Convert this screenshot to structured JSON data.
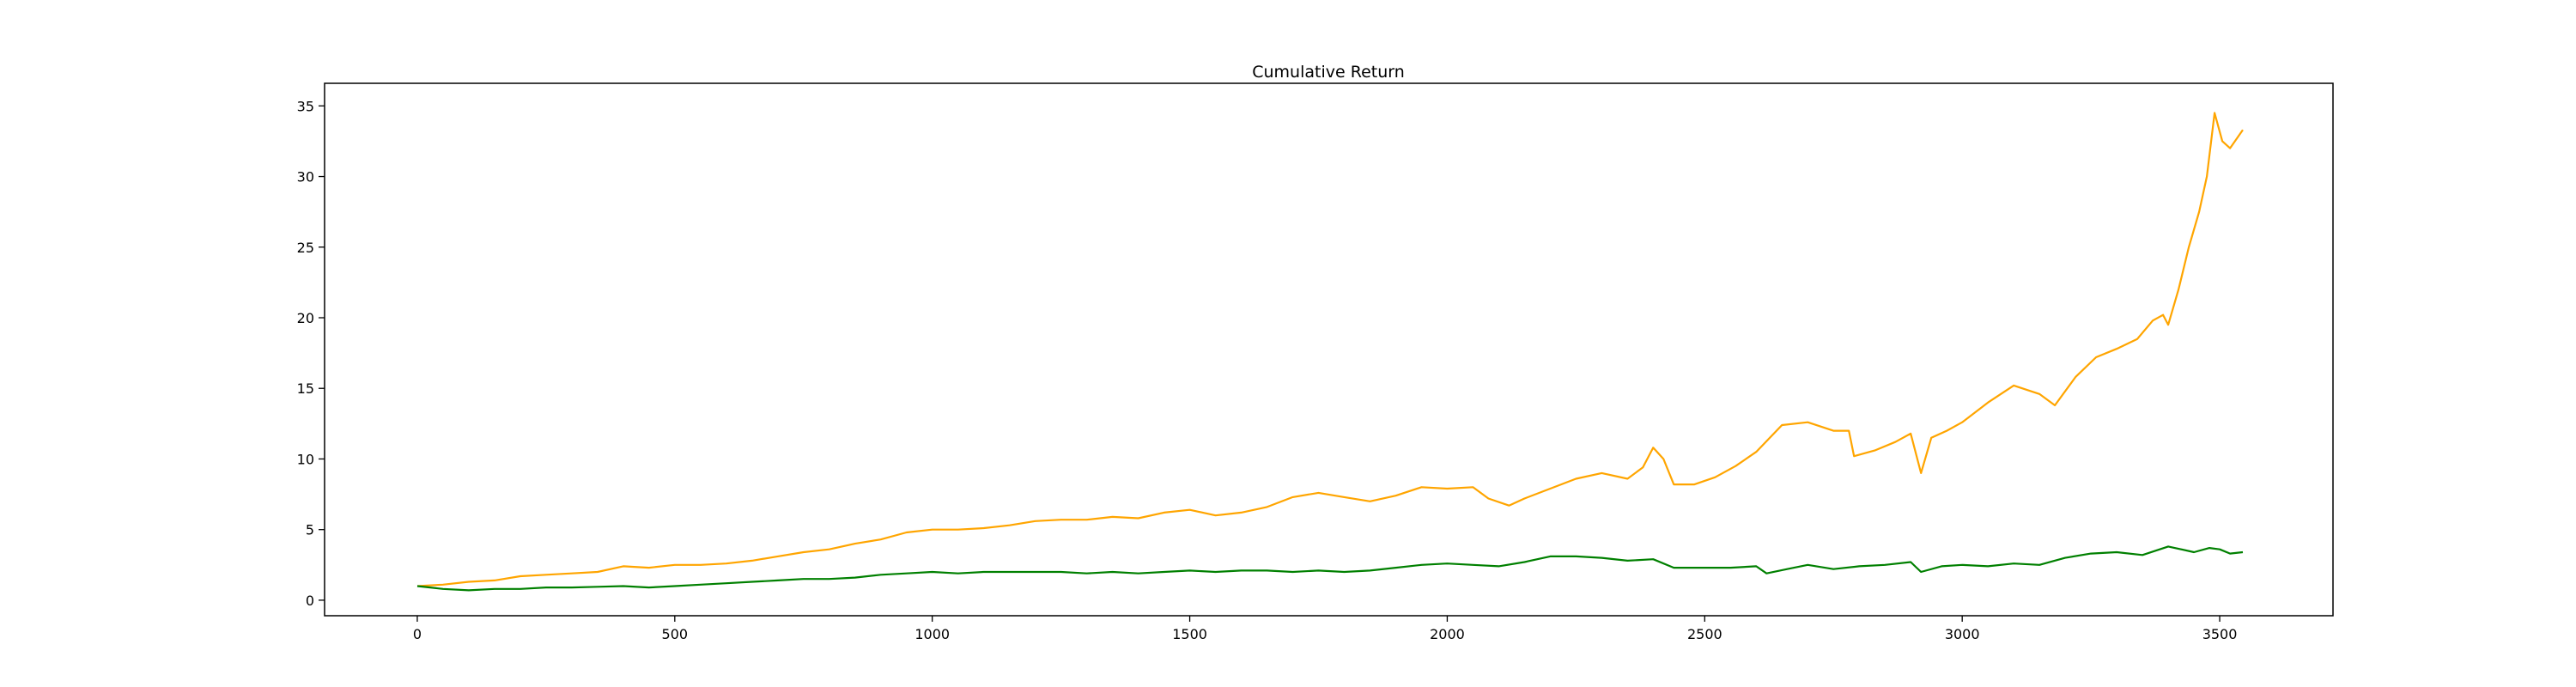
{
  "chart_data": {
    "type": "line",
    "title": "Cumulative Return",
    "xlabel": "",
    "ylabel": "",
    "xlim": [
      -180,
      3720
    ],
    "ylim": [
      -1.1,
      36.6
    ],
    "x_ticks": [
      0,
      500,
      1000,
      1500,
      2000,
      2500,
      3000,
      3500
    ],
    "y_ticks": [
      0,
      5,
      10,
      15,
      20,
      25,
      30,
      35
    ],
    "grid": false,
    "legend": "none",
    "series": [
      {
        "color": "#ffa500",
        "points": [
          [
            0,
            1.0
          ],
          [
            50,
            1.1
          ],
          [
            100,
            1.3
          ],
          [
            150,
            1.4
          ],
          [
            200,
            1.7
          ],
          [
            250,
            1.8
          ],
          [
            300,
            1.9
          ],
          [
            350,
            2.0
          ],
          [
            400,
            2.4
          ],
          [
            450,
            2.3
          ],
          [
            500,
            2.5
          ],
          [
            550,
            2.5
          ],
          [
            600,
            2.6
          ],
          [
            650,
            2.8
          ],
          [
            700,
            3.1
          ],
          [
            750,
            3.4
          ],
          [
            800,
            3.6
          ],
          [
            850,
            4.0
          ],
          [
            900,
            4.3
          ],
          [
            950,
            4.8
          ],
          [
            1000,
            5.0
          ],
          [
            1050,
            5.0
          ],
          [
            1100,
            5.1
          ],
          [
            1150,
            5.3
          ],
          [
            1200,
            5.6
          ],
          [
            1250,
            5.7
          ],
          [
            1300,
            5.7
          ],
          [
            1350,
            5.9
          ],
          [
            1400,
            5.8
          ],
          [
            1450,
            6.2
          ],
          [
            1500,
            6.4
          ],
          [
            1550,
            6.0
          ],
          [
            1600,
            6.2
          ],
          [
            1650,
            6.6
          ],
          [
            1700,
            7.3
          ],
          [
            1750,
            7.6
          ],
          [
            1800,
            7.3
          ],
          [
            1850,
            7.0
          ],
          [
            1900,
            7.4
          ],
          [
            1950,
            8.0
          ],
          [
            2000,
            7.9
          ],
          [
            2050,
            8.0
          ],
          [
            2080,
            7.2
          ],
          [
            2120,
            6.7
          ],
          [
            2150,
            7.2
          ],
          [
            2200,
            7.9
          ],
          [
            2250,
            8.6
          ],
          [
            2300,
            9.0
          ],
          [
            2350,
            8.6
          ],
          [
            2380,
            9.4
          ],
          [
            2400,
            10.8
          ],
          [
            2420,
            10.0
          ],
          [
            2440,
            8.2
          ],
          [
            2480,
            8.2
          ],
          [
            2520,
            8.7
          ],
          [
            2560,
            9.5
          ],
          [
            2600,
            10.5
          ],
          [
            2650,
            12.4
          ],
          [
            2700,
            12.6
          ],
          [
            2750,
            12.0
          ],
          [
            2780,
            12.0
          ],
          [
            2790,
            10.2
          ],
          [
            2830,
            10.6
          ],
          [
            2870,
            11.2
          ],
          [
            2900,
            11.8
          ],
          [
            2920,
            9.0
          ],
          [
            2940,
            11.5
          ],
          [
            2970,
            12.0
          ],
          [
            3000,
            12.6
          ],
          [
            3050,
            14.0
          ],
          [
            3100,
            15.2
          ],
          [
            3150,
            14.6
          ],
          [
            3180,
            13.8
          ],
          [
            3220,
            15.8
          ],
          [
            3260,
            17.2
          ],
          [
            3300,
            17.8
          ],
          [
            3340,
            18.5
          ],
          [
            3370,
            19.8
          ],
          [
            3390,
            20.2
          ],
          [
            3400,
            19.5
          ],
          [
            3420,
            22.0
          ],
          [
            3440,
            25.0
          ],
          [
            3460,
            27.5
          ],
          [
            3475,
            30.0
          ],
          [
            3490,
            34.5
          ],
          [
            3505,
            32.5
          ],
          [
            3520,
            32.0
          ],
          [
            3545,
            33.3
          ]
        ]
      },
      {
        "color": "#008000",
        "points": [
          [
            0,
            1.0
          ],
          [
            50,
            0.8
          ],
          [
            100,
            0.7
          ],
          [
            150,
            0.8
          ],
          [
            200,
            0.8
          ],
          [
            250,
            0.9
          ],
          [
            300,
            0.9
          ],
          [
            350,
            0.95
          ],
          [
            400,
            1.0
          ],
          [
            450,
            0.9
          ],
          [
            500,
            1.0
          ],
          [
            550,
            1.1
          ],
          [
            600,
            1.2
          ],
          [
            650,
            1.3
          ],
          [
            700,
            1.4
          ],
          [
            750,
            1.5
          ],
          [
            800,
            1.5
          ],
          [
            850,
            1.6
          ],
          [
            900,
            1.8
          ],
          [
            950,
            1.9
          ],
          [
            1000,
            2.0
          ],
          [
            1050,
            1.9
          ],
          [
            1100,
            2.0
          ],
          [
            1150,
            2.0
          ],
          [
            1200,
            2.0
          ],
          [
            1250,
            2.0
          ],
          [
            1300,
            1.9
          ],
          [
            1350,
            2.0
          ],
          [
            1400,
            1.9
          ],
          [
            1450,
            2.0
          ],
          [
            1500,
            2.1
          ],
          [
            1550,
            2.0
          ],
          [
            1600,
            2.1
          ],
          [
            1650,
            2.1
          ],
          [
            1700,
            2.0
          ],
          [
            1750,
            2.1
          ],
          [
            1800,
            2.0
          ],
          [
            1850,
            2.1
          ],
          [
            1900,
            2.3
          ],
          [
            1950,
            2.5
          ],
          [
            2000,
            2.6
          ],
          [
            2050,
            2.5
          ],
          [
            2100,
            2.4
          ],
          [
            2150,
            2.7
          ],
          [
            2200,
            3.1
          ],
          [
            2250,
            3.1
          ],
          [
            2300,
            3.0
          ],
          [
            2350,
            2.8
          ],
          [
            2400,
            2.9
          ],
          [
            2440,
            2.3
          ],
          [
            2500,
            2.3
          ],
          [
            2550,
            2.3
          ],
          [
            2600,
            2.4
          ],
          [
            2620,
            1.9
          ],
          [
            2660,
            2.2
          ],
          [
            2700,
            2.5
          ],
          [
            2750,
            2.2
          ],
          [
            2800,
            2.4
          ],
          [
            2850,
            2.5
          ],
          [
            2900,
            2.7
          ],
          [
            2920,
            2.0
          ],
          [
            2960,
            2.4
          ],
          [
            3000,
            2.5
          ],
          [
            3050,
            2.4
          ],
          [
            3100,
            2.6
          ],
          [
            3150,
            2.5
          ],
          [
            3200,
            3.0
          ],
          [
            3250,
            3.3
          ],
          [
            3300,
            3.4
          ],
          [
            3350,
            3.2
          ],
          [
            3400,
            3.8
          ],
          [
            3450,
            3.4
          ],
          [
            3480,
            3.7
          ],
          [
            3500,
            3.6
          ],
          [
            3520,
            3.3
          ],
          [
            3545,
            3.4
          ]
        ]
      }
    ]
  }
}
